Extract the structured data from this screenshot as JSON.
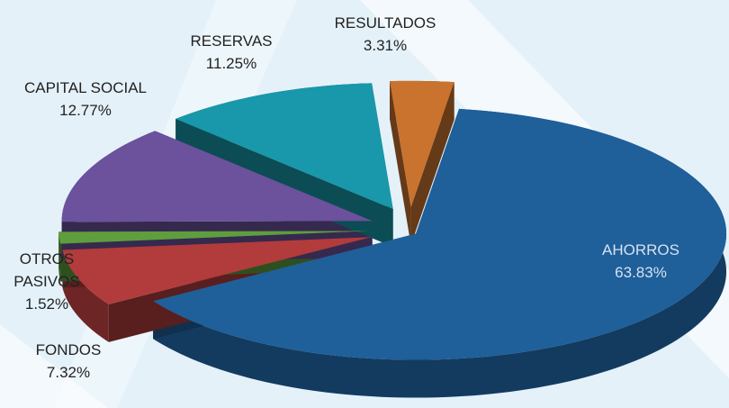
{
  "chart_data": {
    "type": "pie",
    "categories": [
      "AHORROS",
      "FONDOS",
      "OTROS PASIVOS",
      "CAPITAL SOCIAL",
      "RESERVAS",
      "RESULTADOS"
    ],
    "values": [
      63.83,
      7.32,
      1.52,
      12.77,
      11.25,
      3.31
    ],
    "value_labels": [
      "63.83%",
      "7.32%",
      "1.52%",
      "12.77%",
      "11.25%",
      "3.31%"
    ],
    "colors": [
      "#1f5f9a",
      "#b23b3b",
      "#5e9e3e",
      "#6c519c",
      "#1898aa",
      "#c9732f"
    ]
  }
}
